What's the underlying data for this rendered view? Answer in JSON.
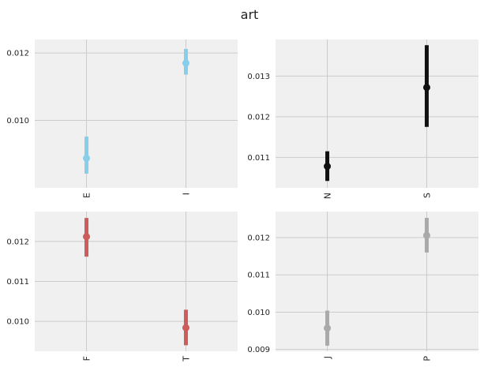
{
  "figure": {
    "title": "art"
  },
  "chart_data": [
    {
      "type": "pointrange",
      "categories": [
        "E",
        "I"
      ],
      "series": [
        {
          "color": "#87ceeb",
          "points": [
            {
              "x": "E",
              "y": 0.00888,
              "low": 0.00842,
              "high": 0.00952
            },
            {
              "x": "I",
              "y": 0.0117,
              "low": 0.01136,
              "high": 0.01212
            }
          ]
        }
      ],
      "yticks": [
        0.01,
        0.012
      ],
      "ytick_labels": [
        "0.010",
        "0.012"
      ],
      "ylim": [
        0.008,
        0.0124
      ],
      "grid": true
    },
    {
      "type": "pointrange",
      "categories": [
        "N",
        "S"
      ],
      "series": [
        {
          "color": "#111111",
          "points": [
            {
              "x": "N",
              "y": 0.01078,
              "low": 0.01042,
              "high": 0.01115
            },
            {
              "x": "S",
              "y": 0.01272,
              "low": 0.01175,
              "high": 0.01376
            }
          ]
        }
      ],
      "yticks": [
        0.011,
        0.012,
        0.013
      ],
      "ytick_labels": [
        "0.011",
        "0.012",
        "0.013"
      ],
      "ylim": [
        0.01025,
        0.0139
      ],
      "grid": true
    },
    {
      "type": "pointrange",
      "categories": [
        "F",
        "T"
      ],
      "series": [
        {
          "color": "#cd5c5c",
          "points": [
            {
              "x": "F",
              "y": 0.01212,
              "low": 0.01162,
              "high": 0.01259
            },
            {
              "x": "T",
              "y": 0.00984,
              "low": 0.0094,
              "high": 0.01029
            }
          ]
        }
      ],
      "yticks": [
        0.01,
        0.011,
        0.012
      ],
      "ytick_labels": [
        "0.010",
        "0.011",
        "0.012"
      ],
      "ylim": [
        0.00925,
        0.01275
      ],
      "grid": true
    },
    {
      "type": "pointrange",
      "categories": [
        "J",
        "P"
      ],
      "series": [
        {
          "color": "#a9a9a9",
          "points": [
            {
              "x": "J",
              "y": 0.00957,
              "low": 0.0091,
              "high": 0.01004
            },
            {
              "x": "P",
              "y": 0.01206,
              "low": 0.0116,
              "high": 0.01253
            }
          ]
        }
      ],
      "yticks": [
        0.009,
        0.01,
        0.011,
        0.012
      ],
      "ytick_labels": [
        "0.009",
        "0.010",
        "0.011",
        "0.012"
      ],
      "ylim": [
        0.00895,
        0.0127
      ],
      "grid": true
    }
  ]
}
